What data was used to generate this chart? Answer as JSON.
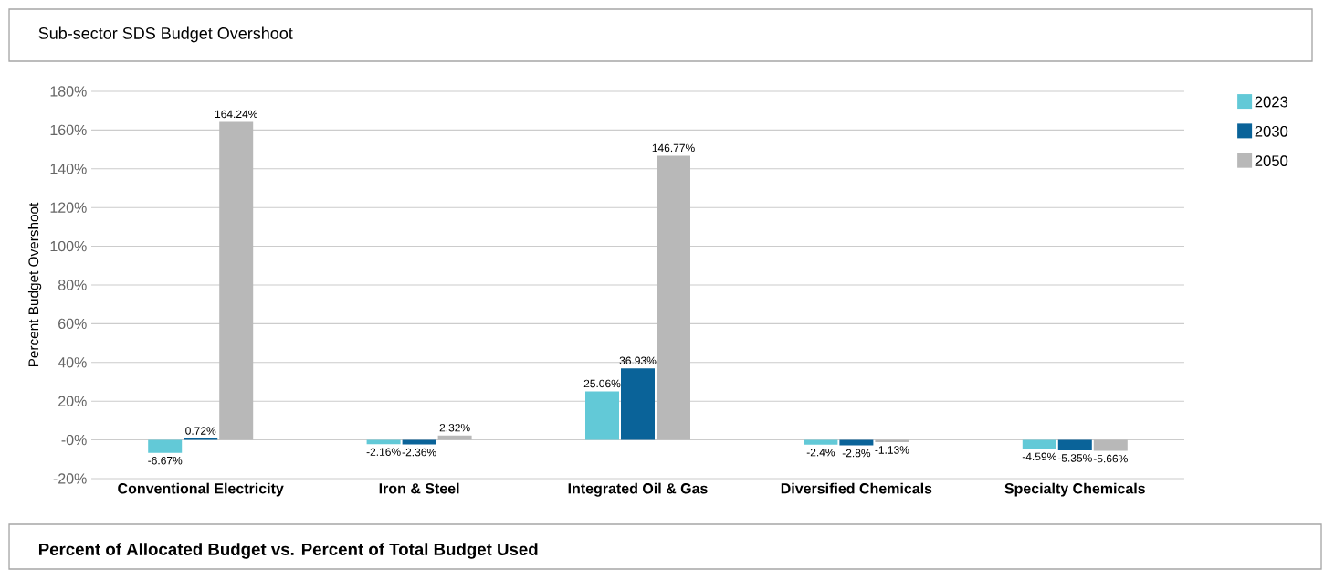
{
  "chart_data": {
    "type": "bar",
    "title": "Sub-sector SDS Budget Overshoot",
    "ylabel": "Percent Budget Overshoot",
    "categories": [
      "Conventional Electricity",
      "Iron & Steel",
      "Integrated Oil & Gas",
      "Diversified Chemicals",
      "Specialty Chemicals"
    ],
    "series": [
      {
        "name": "2023",
        "color": "#62c9d7",
        "values": [
          -6.67,
          -2.16,
          25.06,
          -2.4,
          -4.59
        ],
        "value_labels": [
          "-6.67%",
          "-2.16%",
          "25.06%",
          "-2.4%",
          "-4.59%"
        ]
      },
      {
        "name": "2030",
        "color": "#0a6399",
        "values": [
          0.72,
          -2.36,
          36.93,
          -2.8,
          -5.35
        ],
        "value_labels": [
          "0.72%",
          "-2.36%",
          "36.93%",
          "-2.8%",
          "-5.35%"
        ]
      },
      {
        "name": "2050",
        "color": "#b8b8b8",
        "values": [
          164.24,
          2.32,
          146.77,
          -1.13,
          -5.66
        ],
        "value_labels": [
          "164.24%",
          "2.32%",
          "146.77%",
          "-1.13%",
          "-5.66%"
        ]
      }
    ],
    "ylim": [
      -20,
      180
    ],
    "yticks": [
      {
        "value": -20,
        "label": "-20%"
      },
      {
        "value": 0,
        "label": "-0%"
      },
      {
        "value": 20,
        "label": "20%"
      },
      {
        "value": 40,
        "label": "40%"
      },
      {
        "value": 60,
        "label": "60%"
      },
      {
        "value": 80,
        "label": "80%"
      },
      {
        "value": 100,
        "label": "100%"
      },
      {
        "value": 120,
        "label": "120%"
      },
      {
        "value": 140,
        "label": "140%"
      },
      {
        "value": 160,
        "label": "160%"
      },
      {
        "value": 180,
        "label": "180%"
      }
    ],
    "grid": "y",
    "legend": "top right",
    "annotations": [
      "Percent of Allocated Budget vs. Percent of Total Budget Used"
    ]
  }
}
